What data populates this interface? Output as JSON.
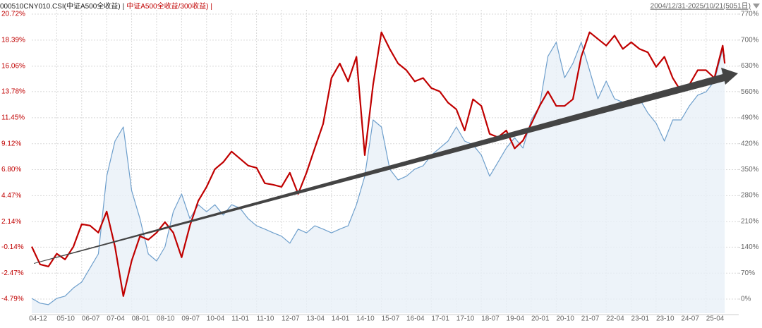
{
  "chart_data": {
    "type": "line",
    "date_range": "2004/12/31-2025/10/21(5051日)",
    "x": [
      2005.0,
      2005.25,
      2005.5,
      2005.75,
      2006.0,
      2006.25,
      2006.5,
      2006.75,
      2007.0,
      2007.25,
      2007.5,
      2007.75,
      2008.0,
      2008.25,
      2008.5,
      2008.75,
      2009.0,
      2009.25,
      2009.5,
      2009.75,
      2010.0,
      2010.25,
      2010.5,
      2010.75,
      2011.0,
      2011.25,
      2011.5,
      2011.75,
      2012.0,
      2012.25,
      2012.5,
      2012.75,
      2013.0,
      2013.25,
      2013.5,
      2013.75,
      2014.0,
      2014.25,
      2014.5,
      2014.75,
      2015.0,
      2015.25,
      2015.5,
      2015.75,
      2016.0,
      2016.25,
      2016.5,
      2016.75,
      2017.0,
      2017.25,
      2017.5,
      2017.75,
      2018.0,
      2018.25,
      2018.5,
      2018.75,
      2019.0,
      2019.25,
      2019.5,
      2019.75,
      2020.0,
      2020.25,
      2020.5,
      2020.75,
      2021.0,
      2021.25,
      2021.5,
      2021.75,
      2022.0,
      2022.25,
      2022.5,
      2022.75,
      2023.0,
      2023.25,
      2023.5,
      2023.75,
      2024.0,
      2024.25,
      2024.5,
      2024.75,
      2025.0,
      2025.25,
      2025.5,
      2025.75,
      2025.81
    ],
    "series": [
      {
        "name": "000510CNY010.CSI(中证A500全收益)",
        "color": "#6e9fcc",
        "fill": "#e9f0f8",
        "axis": "y2",
        "values": [
          2,
          -11,
          -15,
          2,
          8,
          30,
          46,
          84,
          122,
          332,
          427,
          465,
          293,
          217,
          122,
          103,
          141,
          236,
          284,
          217,
          255,
          236,
          255,
          227,
          255,
          246,
          217,
          198,
          189,
          179,
          170,
          151,
          189,
          179,
          198,
          189,
          179,
          189,
          198,
          255,
          332,
          484,
          465,
          351,
          322,
          332,
          351,
          360,
          389,
          408,
          427,
          465,
          427,
          417,
          389,
          332,
          370,
          408,
          436,
          408,
          484,
          522,
          656,
          694,
          598,
          637,
          694,
          618,
          541,
          589,
          541,
          532,
          522,
          541,
          503,
          475,
          427,
          484,
          484,
          522,
          551,
          560,
          589,
          675,
          656
        ]
      },
      {
        "name": "中证A500全收益/300收益)",
        "color": "#c00000",
        "values": [
          -0.09,
          -1.68,
          -1.87,
          -0.73,
          -1.24,
          -0.1,
          1.92,
          1.79,
          1.16,
          3.05,
          -0.1,
          -4.52,
          -1.36,
          0.84,
          0.53,
          1.16,
          2.1,
          1.16,
          -1.05,
          1.79,
          4.0,
          5.26,
          6.84,
          7.47,
          8.42,
          7.79,
          7.16,
          6.96,
          5.58,
          5.45,
          5.26,
          6.52,
          4.63,
          6.52,
          8.73,
          10.9,
          15.0,
          16.3,
          14.7,
          16.9,
          8.1,
          14.4,
          19.1,
          17.6,
          16.3,
          15.7,
          14.7,
          15.0,
          14.1,
          13.8,
          12.8,
          12.2,
          10.3,
          13.1,
          12.5,
          10.0,
          9.7,
          10.3,
          8.7,
          9.4,
          10.9,
          12.5,
          13.8,
          12.5,
          12.5,
          13.1,
          16.9,
          19.1,
          18.5,
          17.9,
          18.8,
          17.6,
          18.2,
          17.6,
          17.3,
          16.0,
          16.9,
          15.0,
          13.8,
          14.4,
          15.7,
          15.7,
          15.0,
          17.9,
          16.3
        ]
      }
    ],
    "xlim": [
      2005.0,
      2026.23
    ],
    "xticks": [
      {
        "value": 2004.917,
        "label": "04-12"
      },
      {
        "value": 2005.75,
        "label": "05-10"
      },
      {
        "value": 2006.5,
        "label": "06-07"
      },
      {
        "value": 2007.25,
        "label": "07-04"
      },
      {
        "value": 2008.0,
        "label": "08-01"
      },
      {
        "value": 2008.75,
        "label": "08-10"
      },
      {
        "value": 2009.5,
        "label": "09-07"
      },
      {
        "value": 2010.25,
        "label": "10-04"
      },
      {
        "value": 2011.0,
        "label": "11-01"
      },
      {
        "value": 2011.75,
        "label": "11-10"
      },
      {
        "value": 2012.5,
        "label": "12-07"
      },
      {
        "value": 2013.25,
        "label": "13-04"
      },
      {
        "value": 2014.0,
        "label": "14-01"
      },
      {
        "value": 2014.75,
        "label": "14-10"
      },
      {
        "value": 2015.5,
        "label": "15-07"
      },
      {
        "value": 2016.25,
        "label": "16-04"
      },
      {
        "value": 2017.0,
        "label": "17-01"
      },
      {
        "value": 2017.75,
        "label": "17-10"
      },
      {
        "value": 2018.5,
        "label": "18-07"
      },
      {
        "value": 2019.25,
        "label": "19-04"
      },
      {
        "value": 2020.0,
        "label": "20-01"
      },
      {
        "value": 2020.75,
        "label": "20-10"
      },
      {
        "value": 2021.5,
        "label": "21-07"
      },
      {
        "value": 2022.25,
        "label": "22-04"
      },
      {
        "value": 2023.0,
        "label": "23-01"
      },
      {
        "value": 2023.75,
        "label": "23-10"
      },
      {
        "value": 2024.5,
        "label": "24-07"
      },
      {
        "value": 2025.25,
        "label": "25-04"
      }
    ],
    "ylim": [
      -6.05,
      21.1
    ],
    "yticks": [
      {
        "value": 20.72,
        "label": "20.72%"
      },
      {
        "value": 18.39,
        "label": "18.39%"
      },
      {
        "value": 16.06,
        "label": "16.06%"
      },
      {
        "value": 13.78,
        "label": "13.78%"
      },
      {
        "value": 11.45,
        "label": "11.45%"
      },
      {
        "value": 9.12,
        "label": "9.12%"
      },
      {
        "value": 6.8,
        "label": "6.80%"
      },
      {
        "value": 4.47,
        "label": "4.47%"
      },
      {
        "value": 2.14,
        "label": "2.14%"
      },
      {
        "value": -0.14,
        "label": "-0.14%"
      },
      {
        "value": -2.47,
        "label": "-2.47%"
      },
      {
        "value": -4.79,
        "label": "-4.79%"
      }
    ],
    "y2lim": [
      -38.1,
      781.4
    ],
    "y2ticks": [
      {
        "value": 770,
        "label": "770%"
      },
      {
        "value": 700,
        "label": "700%"
      },
      {
        "value": 630,
        "label": "630%"
      },
      {
        "value": 560,
        "label": "560%"
      },
      {
        "value": 490,
        "label": "490%"
      },
      {
        "value": 420,
        "label": "420%"
      },
      {
        "value": 350,
        "label": "350%"
      },
      {
        "value": 280,
        "label": "280%"
      },
      {
        "value": 210,
        "label": "210%"
      },
      {
        "value": 140,
        "label": "140%"
      },
      {
        "value": 70,
        "label": "70%"
      },
      {
        "value": 0,
        "label": "0%"
      }
    ],
    "grid": true
  }
}
